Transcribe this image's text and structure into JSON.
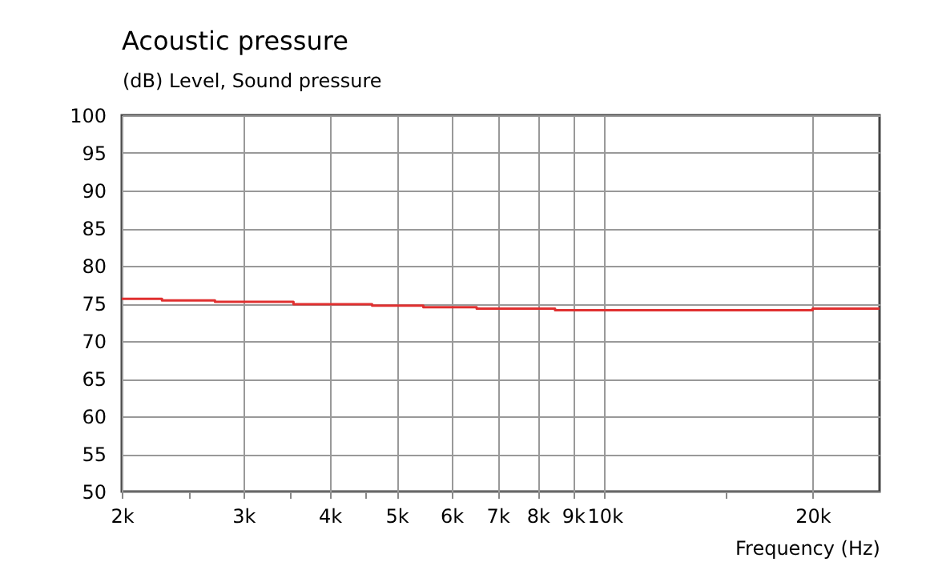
{
  "chart_data": {
    "type": "step",
    "title": "Acoustic pressure",
    "ylabel": "(dB)  Level, Sound pressure",
    "xlabel": "Frequency  (Hz)",
    "log": "x",
    "grid": true,
    "xlim": [
      2000,
      25000
    ],
    "xticks": [
      {
        "value": 2000,
        "label": "2k"
      },
      {
        "value": 2500,
        "label": null
      },
      {
        "value": 3000,
        "label": "3k"
      },
      {
        "value": 3500,
        "label": null
      },
      {
        "value": 4000,
        "label": "4k"
      },
      {
        "value": 4500,
        "label": null
      },
      {
        "value": 5000,
        "label": "5k"
      },
      {
        "value": 6000,
        "label": "6k"
      },
      {
        "value": 7000,
        "label": "7k"
      },
      {
        "value": 8000,
        "label": "8k"
      },
      {
        "value": 9000,
        "label": "9k"
      },
      {
        "value": 10000,
        "label": "10k"
      },
      {
        "value": 15000,
        "label": null
      },
      {
        "value": 20000,
        "label": "20k"
      }
    ],
    "ylim": [
      50,
      100
    ],
    "yticks": [
      50,
      55,
      60,
      65,
      70,
      75,
      80,
      85,
      90,
      95,
      100
    ],
    "series": [
      {
        "color": "#e03030",
        "x": [
          2000,
          2287,
          2729,
          3545,
          4607,
          5465,
          6528,
          8477,
          20000,
          25000
        ],
        "values": [
          75.6,
          75.4,
          75.2,
          74.9,
          74.7,
          74.5,
          74.3,
          74.1,
          74.3,
          74.3
        ]
      }
    ]
  }
}
